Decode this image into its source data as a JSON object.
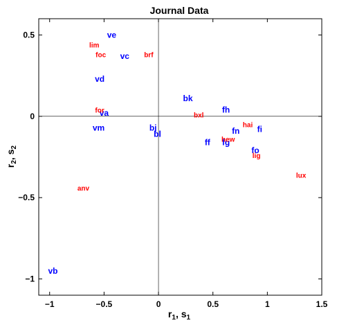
{
  "chart_data": {
    "type": "scatter",
    "title": "Journal Data",
    "xlabel": {
      "main": "r",
      "sub": "1",
      "sep": ", ",
      "main2": "s",
      "sub2": "1"
    },
    "ylabel": {
      "main": "r",
      "sub": "2",
      "sep": ", ",
      "main2": "s",
      "sub2": "2"
    },
    "xlim": [
      -1.1,
      1.5
    ],
    "ylim": [
      -1.1,
      0.6
    ],
    "xticks": [
      {
        "v": -1,
        "label": "−1"
      },
      {
        "v": -0.5,
        "label": "−0.5"
      },
      {
        "v": 0,
        "label": "0"
      },
      {
        "v": 0.5,
        "label": "0.5"
      },
      {
        "v": 1,
        "label": "1"
      },
      {
        "v": 1.5,
        "label": "1.5"
      }
    ],
    "yticks": [
      {
        "v": 0.5,
        "label": "0.5"
      },
      {
        "v": 0,
        "label": "0"
      },
      {
        "v": -0.5,
        "label": "−0.5"
      },
      {
        "v": -1,
        "label": "−1"
      }
    ],
    "reference_lines": {
      "x": 0,
      "y": 0
    },
    "series": [
      {
        "color": "#0000ff",
        "points": [
          {
            "label": "ve",
            "x": -0.43,
            "y": 0.5
          },
          {
            "label": "vc",
            "x": -0.31,
            "y": 0.37
          },
          {
            "label": "vd",
            "x": -0.54,
            "y": 0.23
          },
          {
            "label": "va",
            "x": -0.5,
            "y": 0.02
          },
          {
            "label": "vm",
            "x": -0.55,
            "y": -0.07
          },
          {
            "label": "vb",
            "x": -0.97,
            "y": -0.95
          },
          {
            "label": "bj",
            "x": -0.05,
            "y": -0.07
          },
          {
            "label": "bl",
            "x": -0.01,
            "y": -0.11
          },
          {
            "label": "bk",
            "x": 0.27,
            "y": 0.11
          },
          {
            "label": "fh",
            "x": 0.62,
            "y": 0.04
          },
          {
            "label": "fn",
            "x": 0.71,
            "y": -0.09
          },
          {
            "label": "fi",
            "x": 0.93,
            "y": -0.08
          },
          {
            "label": "ff",
            "x": 0.45,
            "y": -0.16
          },
          {
            "label": "fg",
            "x": 0.62,
            "y": -0.16
          },
          {
            "label": "fo",
            "x": 0.89,
            "y": -0.21
          }
        ]
      },
      {
        "color": "#ff0000",
        "points": [
          {
            "label": "lim",
            "x": -0.59,
            "y": 0.44
          },
          {
            "label": "foc",
            "x": -0.53,
            "y": 0.38
          },
          {
            "label": "brf",
            "x": -0.09,
            "y": 0.38
          },
          {
            "label": "for",
            "x": -0.54,
            "y": 0.04
          },
          {
            "label": "bxl",
            "x": 0.37,
            "y": 0.01
          },
          {
            "label": "hai",
            "x": 0.82,
            "y": -0.05
          },
          {
            "label": "hew",
            "x": 0.64,
            "y": -0.14
          },
          {
            "label": "lig",
            "x": 0.9,
            "y": -0.24
          },
          {
            "label": "lux",
            "x": 1.31,
            "y": -0.36
          },
          {
            "label": "anv",
            "x": -0.69,
            "y": -0.44
          }
        ]
      }
    ]
  }
}
